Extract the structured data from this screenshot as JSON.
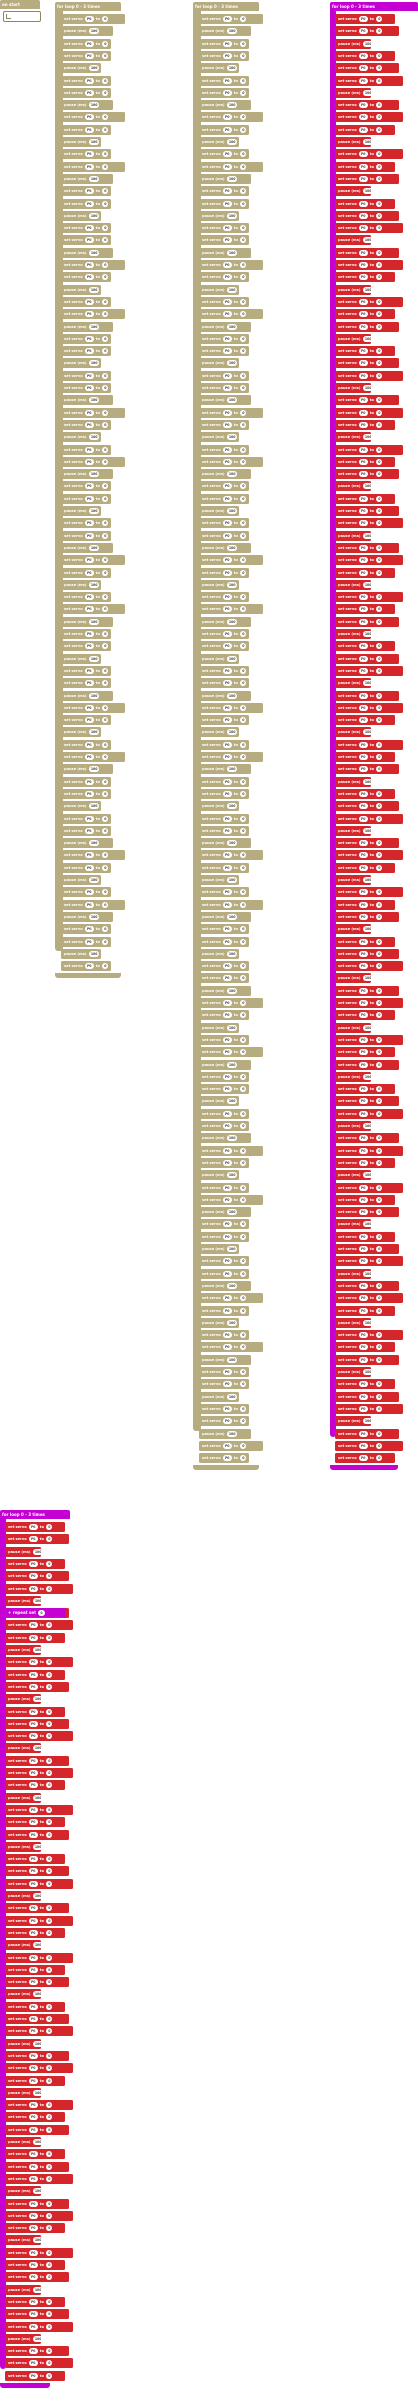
{
  "workspace": {
    "start_label": "on start",
    "tan_loop": {
      "label": "for loop",
      "mid": "0 - 3",
      "end": "times"
    },
    "tan_loop2": {
      "label": "for loop",
      "mid": "0 - 3",
      "end": "times"
    },
    "magenta_loop": {
      "label": "for loop",
      "mid": "0 - 3",
      "end": "times"
    },
    "magenta_loop2": {
      "label": "for loop",
      "mid": "0 - 3",
      "end": "times"
    },
    "magenta_inner": {
      "label": "+",
      "text": "repeat set",
      "val": "0"
    },
    "block_texts": {
      "set": "set servo",
      "to": "to",
      "pause": "pause (ms)",
      "ms": "100",
      "val": "0",
      "digital": "write digital pin",
      "value": "value",
      "pin": "P0"
    },
    "colors": {
      "tan": "#b7ac80",
      "red": "#d4262b",
      "magenta": "#c400d3"
    }
  }
}
